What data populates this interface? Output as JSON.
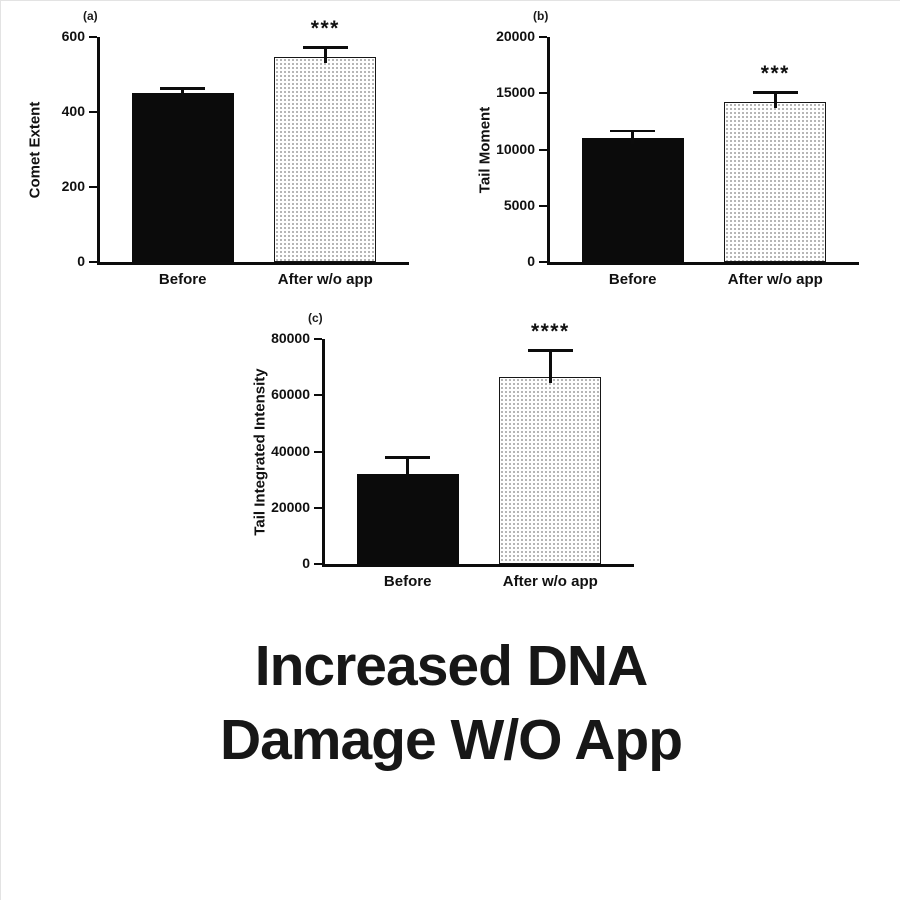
{
  "figure": {
    "caption_line1": "Increased DNA",
    "caption_line2": "Damage W/O App"
  },
  "colors": {
    "axis": "#0c0c0c",
    "solid_bar": "#0b0b0b",
    "stipple_dot": "#9e9e9e",
    "background": "#ffffff"
  },
  "chart_data": [
    {
      "type": "bar",
      "panel_label": "(a)",
      "ylabel": "Comet Extent",
      "xlabel": "",
      "categories": [
        "Before",
        "After w/o app"
      ],
      "values": [
        452,
        548
      ],
      "errors": [
        12,
        25
      ],
      "bar_styles": [
        "solid-black",
        "stippled-white"
      ],
      "significance": "***",
      "significance_on": "After w/o app",
      "ylim": [
        0,
        600
      ],
      "yticks": [
        0,
        200,
        400,
        600
      ],
      "grid": false,
      "legend": "none"
    },
    {
      "type": "bar",
      "panel_label": "(b)",
      "ylabel": "Tail Moment",
      "xlabel": "",
      "categories": [
        "Before",
        "After w/o app"
      ],
      "values": [
        11000,
        14200
      ],
      "errors": [
        650,
        900
      ],
      "bar_styles": [
        "solid-black",
        "stippled-white"
      ],
      "significance": "***",
      "significance_on": "After w/o app",
      "ylim": [
        0,
        20000
      ],
      "yticks": [
        0,
        5000,
        10000,
        15000,
        20000
      ],
      "grid": false,
      "legend": "none"
    },
    {
      "type": "bar",
      "panel_label": "(c)",
      "ylabel": "Tail Integrated Intensity",
      "xlabel": "",
      "categories": [
        "Before",
        "After w/o app"
      ],
      "values": [
        32000,
        66500
      ],
      "errors": [
        6000,
        9500
      ],
      "bar_styles": [
        "solid-black",
        "stippled-white"
      ],
      "significance": "****",
      "significance_on": "After w/o app",
      "ylim": [
        0,
        80000
      ],
      "yticks": [
        0,
        20000,
        40000,
        60000,
        80000
      ],
      "grid": false,
      "legend": "none"
    }
  ]
}
